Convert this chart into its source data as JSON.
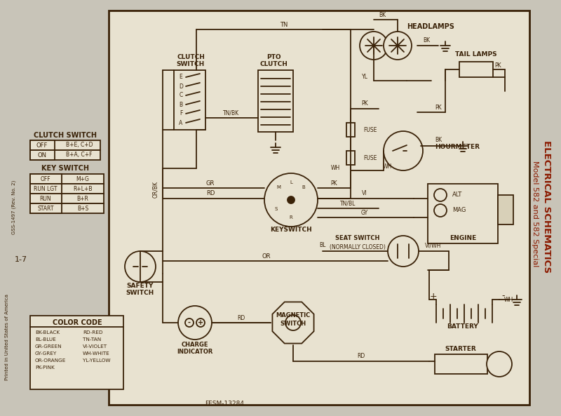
{
  "bg_outer": "#c8c4b8",
  "bg_inner": "#e8e2d0",
  "line_color": "#3a2208",
  "red_text": "#8B1A00",
  "title_main": "ELECTRICAL SCHEMATICS",
  "title_sub": "Model 582 and 582 Special",
  "doc_number": "GSS-1497 (Rev. No. 2)",
  "page_number": "1-7",
  "form_number": "FESM-13284",
  "printed": "Printed in United States of America",
  "clutch_switch_title": "CLUTCH SWITCH",
  "clutch_switch_rows": [
    [
      "OFF",
      "B+E, C+D"
    ],
    [
      "ON",
      "B+A, C+F"
    ]
  ],
  "key_switch_title": "KEY SWITCH",
  "key_switch_rows": [
    [
      "OFF",
      "M+G"
    ],
    [
      "RUN LGT",
      "R+L+B"
    ],
    [
      "RUN",
      "B+R"
    ],
    [
      "START",
      "B+S"
    ]
  ],
  "color_code_title": "COLOR CODE",
  "color_code_left": [
    "BK-BLACK",
    "BL-BLUE",
    "GR-GREEN",
    "GY-GREY",
    "OR-ORANGE",
    "PK-PINK"
  ],
  "color_code_right": [
    "RD-RED",
    "TN-TAN",
    "VI-VIOLET",
    "WH-WHITE",
    "YL-YELLOW"
  ]
}
